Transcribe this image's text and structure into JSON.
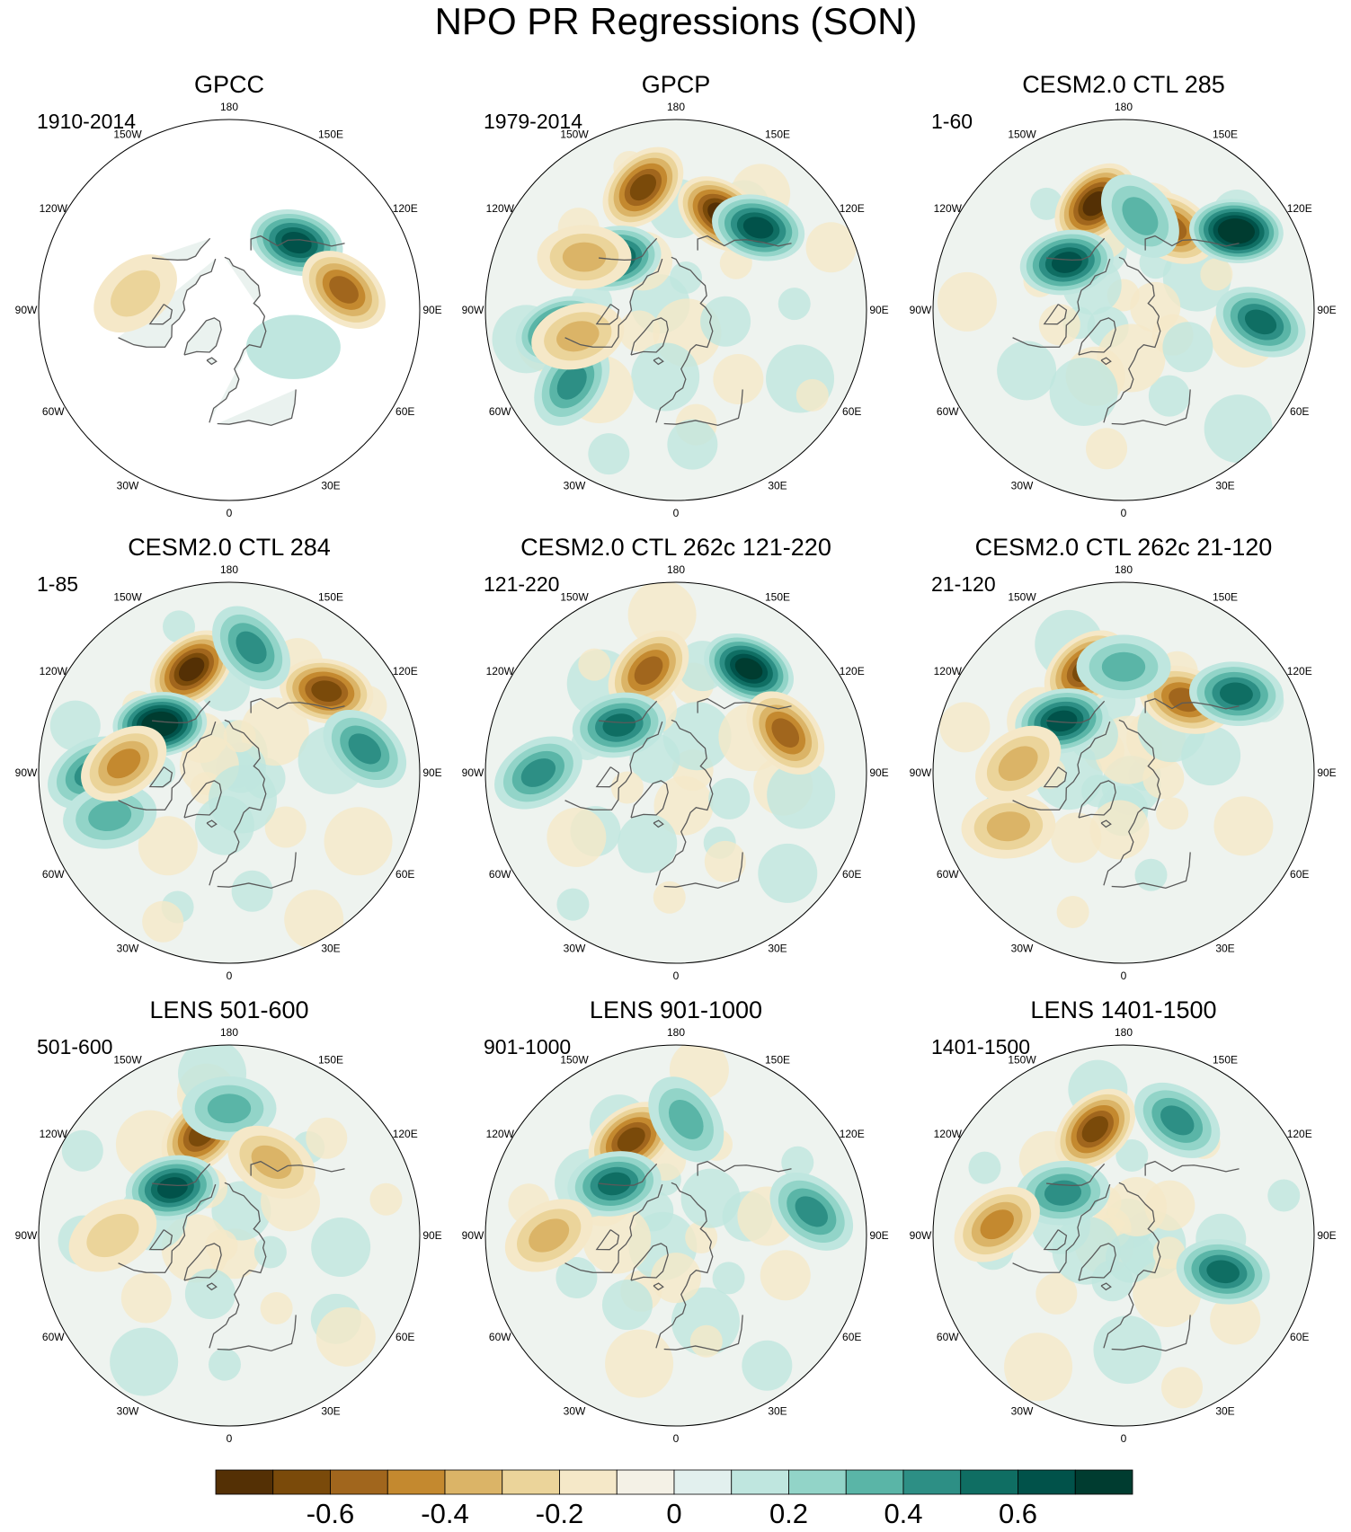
{
  "chart_data": {
    "type": "polar-map-grid",
    "title": "NPO PR Regressions (SON)",
    "projection": "north-polar-stereographic",
    "longitude_labels": [
      "180",
      "150E",
      "120E",
      "90E",
      "60E",
      "30E",
      "0",
      "30W",
      "60W",
      "90W",
      "120W",
      "150W"
    ],
    "panels": [
      {
        "title": "GPCC",
        "period": "1910-2014",
        "land_only": true,
        "features": [
          {
            "lon": 135,
            "lat": 45,
            "v": 0.6
          },
          {
            "lon": 100,
            "lat": 35,
            "v": -0.5
          },
          {
            "lon": -100,
            "lat": 45,
            "v": -0.2
          },
          {
            "lon": 60,
            "lat": 55,
            "v": 0.15
          }
        ]
      },
      {
        "title": "GPCP",
        "period": "1979-2014",
        "land_only": false,
        "features": [
          {
            "lon": -165,
            "lat": 30,
            "v": -0.6
          },
          {
            "lon": 155,
            "lat": 40,
            "v": -0.7
          },
          {
            "lon": 135,
            "lat": 35,
            "v": 0.6
          },
          {
            "lon": -130,
            "lat": 52,
            "v": 0.6
          },
          {
            "lon": -80,
            "lat": 35,
            "v": 0.55
          },
          {
            "lon": -55,
            "lat": 30,
            "v": 0.4
          },
          {
            "lon": -75,
            "lat": 42,
            "v": -0.35
          },
          {
            "lon": -120,
            "lat": 40,
            "v": -0.3
          }
        ]
      },
      {
        "title": "CESM2.0 CTL 285",
        "period": "1-60",
        "land_only": false,
        "features": [
          {
            "lon": -165,
            "lat": 38,
            "v": -0.7
          },
          {
            "lon": 150,
            "lat": 45,
            "v": -0.45
          },
          {
            "lon": 125,
            "lat": 25,
            "v": 0.75
          },
          {
            "lon": -130,
            "lat": 55,
            "v": 0.55
          },
          {
            "lon": 170,
            "lat": 45,
            "v": 0.35
          },
          {
            "lon": 85,
            "lat": 25,
            "v": 0.5
          }
        ]
      },
      {
        "title": "CESM2.0 CTL 284",
        "period": "1-85",
        "land_only": false,
        "features": [
          {
            "lon": -160,
            "lat": 38,
            "v": -0.65
          },
          {
            "lon": 130,
            "lat": 30,
            "v": -0.6
          },
          {
            "lon": -125,
            "lat": 50,
            "v": 0.75
          },
          {
            "lon": 170,
            "lat": 30,
            "v": 0.4
          },
          {
            "lon": -90,
            "lat": 25,
            "v": 0.4
          },
          {
            "lon": -70,
            "lat": 30,
            "v": 0.35
          },
          {
            "lon": -95,
            "lat": 40,
            "v": -0.4
          },
          {
            "lon": 100,
            "lat": 25,
            "v": 0.4
          }
        ]
      },
      {
        "title": "CESM2.0 CTL 262c 121-220",
        "period": "121-220",
        "land_only": false,
        "features": [
          {
            "lon": -165,
            "lat": 40,
            "v": -0.45
          },
          {
            "lon": 145,
            "lat": 30,
            "v": 0.7
          },
          {
            "lon": 110,
            "lat": 35,
            "v": -0.45
          },
          {
            "lon": -130,
            "lat": 55,
            "v": 0.45
          },
          {
            "lon": -90,
            "lat": 25,
            "v": 0.4
          }
        ]
      },
      {
        "title": "CESM2.0 CTL 262c 21-120",
        "period": "21-120",
        "land_only": false,
        "features": [
          {
            "lon": -160,
            "lat": 38,
            "v": -0.6
          },
          {
            "lon": 140,
            "lat": 45,
            "v": -0.5
          },
          {
            "lon": -130,
            "lat": 52,
            "v": 0.55
          },
          {
            "lon": 125,
            "lat": 25,
            "v": 0.45
          },
          {
            "lon": 180,
            "lat": 40,
            "v": 0.35
          },
          {
            "lon": -95,
            "lat": 40,
            "v": -0.3
          },
          {
            "lon": -65,
            "lat": 30,
            "v": -0.3
          }
        ]
      },
      {
        "title": "LENS 501-600",
        "period": "501-600",
        "land_only": false,
        "features": [
          {
            "lon": -165,
            "lat": 40,
            "v": -0.55
          },
          {
            "lon": -130,
            "lat": 55,
            "v": 0.6
          },
          {
            "lon": 180,
            "lat": 30,
            "v": 0.35
          },
          {
            "lon": 150,
            "lat": 50,
            "v": -0.25
          },
          {
            "lon": -90,
            "lat": 35,
            "v": -0.2
          }
        ]
      },
      {
        "title": "LENS 901-1000",
        "period": "901-1000",
        "land_only": false,
        "features": [
          {
            "lon": -155,
            "lat": 40,
            "v": -0.55
          },
          {
            "lon": -130,
            "lat": 52,
            "v": 0.5
          },
          {
            "lon": 175,
            "lat": 35,
            "v": 0.35
          },
          {
            "lon": 100,
            "lat": 25,
            "v": 0.4
          },
          {
            "lon": -90,
            "lat": 30,
            "v": -0.3
          }
        ]
      },
      {
        "title": "LENS 1401-1500",
        "period": "1401-1500",
        "land_only": false,
        "features": [
          {
            "lon": -165,
            "lat": 38,
            "v": -0.55
          },
          {
            "lon": -125,
            "lat": 55,
            "v": 0.4
          },
          {
            "lon": 155,
            "lat": 30,
            "v": 0.4
          },
          {
            "lon": -95,
            "lat": 30,
            "v": -0.4
          },
          {
            "lon": 70,
            "lat": 40,
            "v": 0.45
          }
        ]
      }
    ],
    "colorbar": {
      "levels": [
        -0.7,
        -0.6,
        -0.5,
        -0.4,
        -0.3,
        -0.2,
        -0.1,
        0,
        0.1,
        0.2,
        0.3,
        0.4,
        0.5,
        0.6,
        0.7
      ],
      "tick_labels": [
        "-0.6",
        "-0.4",
        "-0.2",
        "0",
        "0.2",
        "0.4",
        "0.6"
      ],
      "tick_values": [
        -0.6,
        -0.4,
        -0.2,
        0,
        0.2,
        0.4,
        0.6
      ],
      "colors": [
        "#543005",
        "#7a4a0a",
        "#a1661d",
        "#c4892f",
        "#dbb467",
        "#ebd49a",
        "#f5e8c8",
        "#f4f1e6",
        "#e2f0ee",
        "#bfe6df",
        "#92d4c8",
        "#5ab5a7",
        "#2d8f85",
        "#0f6e63",
        "#01524a",
        "#003c30"
      ]
    }
  }
}
